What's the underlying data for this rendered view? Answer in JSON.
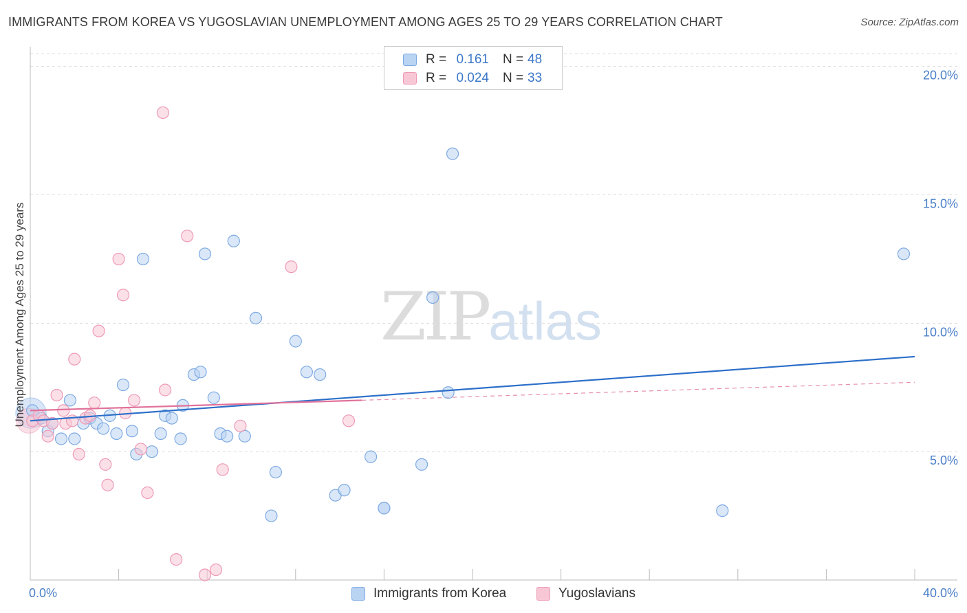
{
  "title": "IMMIGRANTS FROM KOREA VS YUGOSLAVIAN UNEMPLOYMENT AMONG AGES 25 TO 29 YEARS CORRELATION CHART",
  "source": "Source: ZipAtlas.com",
  "watermark": {
    "zip": "ZIP",
    "atlas": "atlas"
  },
  "legend": {
    "rows": [
      {
        "r_label": "R =",
        "r_value": "0.161",
        "n_label": "N =",
        "n_value": "48"
      },
      {
        "r_label": "R =",
        "r_value": "0.024",
        "n_label": "N =",
        "n_value": "33"
      }
    ]
  },
  "colors": {
    "korea_fill": "#b9d3f3",
    "korea_stroke": "#7eaae2",
    "korea_line": "#2c6fc9",
    "yugo_fill": "#f8c7d6",
    "yugo_stroke": "#ee9ab6",
    "yugo_line": "#e0729a",
    "tick_text": "#4a7fc8",
    "grid": "#dddddd"
  },
  "chart_data": {
    "type": "scatter",
    "ylabel": "Unemployment Among Ages 25 to 29 years",
    "xlim": [
      0,
      40
    ],
    "ylim": [
      0,
      20.5
    ],
    "y_ticks": [
      {
        "value": 5,
        "label": "5.0%"
      },
      {
        "value": 10,
        "label": "10.0%"
      },
      {
        "value": 15,
        "label": "15.0%"
      },
      {
        "value": 20,
        "label": "20.0%"
      }
    ],
    "x_tick_labels": [
      {
        "value": 0,
        "label": "0.0%"
      },
      {
        "value": 40,
        "label": "40.0%"
      }
    ],
    "x_minor_ticks": [
      0,
      4,
      8,
      12,
      16,
      20,
      24,
      28,
      32,
      36,
      40
    ],
    "series": [
      {
        "name": "Immigrants from Korea",
        "trend": {
          "x0": 0,
          "y0": 6.2,
          "x1": 40,
          "y1": 8.7
        },
        "points": [
          [
            0.1,
            6.6
          ],
          [
            0.5,
            6.3
          ],
          [
            0.8,
            5.8
          ],
          [
            1.0,
            6.1
          ],
          [
            1.4,
            5.5
          ],
          [
            1.8,
            7.0
          ],
          [
            2.0,
            5.5
          ],
          [
            2.4,
            6.1
          ],
          [
            2.7,
            6.3
          ],
          [
            3.0,
            6.1
          ],
          [
            3.3,
            5.9
          ],
          [
            3.6,
            6.4
          ],
          [
            3.9,
            5.7
          ],
          [
            4.2,
            7.6
          ],
          [
            4.6,
            5.8
          ],
          [
            4.8,
            4.9
          ],
          [
            5.1,
            12.5
          ],
          [
            5.5,
            5.0
          ],
          [
            5.9,
            5.7
          ],
          [
            6.1,
            6.4
          ],
          [
            6.4,
            6.3
          ],
          [
            6.8,
            5.5
          ],
          [
            6.9,
            6.8
          ],
          [
            7.4,
            8.0
          ],
          [
            7.7,
            8.1
          ],
          [
            7.9,
            12.7
          ],
          [
            8.3,
            7.1
          ],
          [
            8.6,
            5.7
          ],
          [
            8.9,
            5.6
          ],
          [
            9.2,
            13.2
          ],
          [
            9.7,
            5.6
          ],
          [
            10.2,
            10.2
          ],
          [
            10.9,
            2.5
          ],
          [
            11.1,
            4.2
          ],
          [
            12.0,
            9.3
          ],
          [
            12.5,
            8.1
          ],
          [
            13.1,
            8.0
          ],
          [
            13.8,
            3.3
          ],
          [
            14.2,
            3.5
          ],
          [
            15.4,
            4.8
          ],
          [
            16.0,
            2.8
          ],
          [
            16.0,
            2.8
          ],
          [
            17.7,
            4.5
          ],
          [
            18.2,
            11.0
          ],
          [
            18.9,
            7.3
          ],
          [
            19.1,
            16.6
          ],
          [
            31.3,
            2.7
          ],
          [
            39.5,
            12.7
          ]
        ]
      },
      {
        "name": "Yugoslavians",
        "trend": {
          "x0": 0,
          "y0": 6.6,
          "x1": 15,
          "y1": 7.0,
          "dash_x1": 40,
          "dash_y1": 7.7
        },
        "points": [
          [
            0.1,
            6.2
          ],
          [
            0.4,
            6.4
          ],
          [
            0.6,
            6.2
          ],
          [
            0.8,
            5.6
          ],
          [
            1.0,
            6.1
          ],
          [
            1.2,
            7.2
          ],
          [
            1.5,
            6.6
          ],
          [
            1.6,
            6.1
          ],
          [
            1.9,
            6.2
          ],
          [
            2.0,
            8.6
          ],
          [
            2.2,
            4.9
          ],
          [
            2.5,
            6.3
          ],
          [
            2.7,
            6.4
          ],
          [
            2.9,
            6.9
          ],
          [
            3.1,
            9.7
          ],
          [
            3.4,
            4.5
          ],
          [
            3.5,
            3.7
          ],
          [
            4.0,
            12.5
          ],
          [
            4.2,
            11.1
          ],
          [
            4.3,
            6.5
          ],
          [
            4.7,
            7.0
          ],
          [
            5.0,
            5.1
          ],
          [
            5.3,
            3.4
          ],
          [
            6.0,
            18.2
          ],
          [
            6.1,
            7.4
          ],
          [
            6.6,
            0.8
          ],
          [
            7.1,
            13.4
          ],
          [
            7.9,
            0.2
          ],
          [
            8.4,
            0.4
          ],
          [
            8.7,
            4.3
          ],
          [
            9.5,
            6.0
          ],
          [
            11.8,
            12.2
          ],
          [
            14.4,
            6.2
          ]
        ]
      }
    ]
  }
}
